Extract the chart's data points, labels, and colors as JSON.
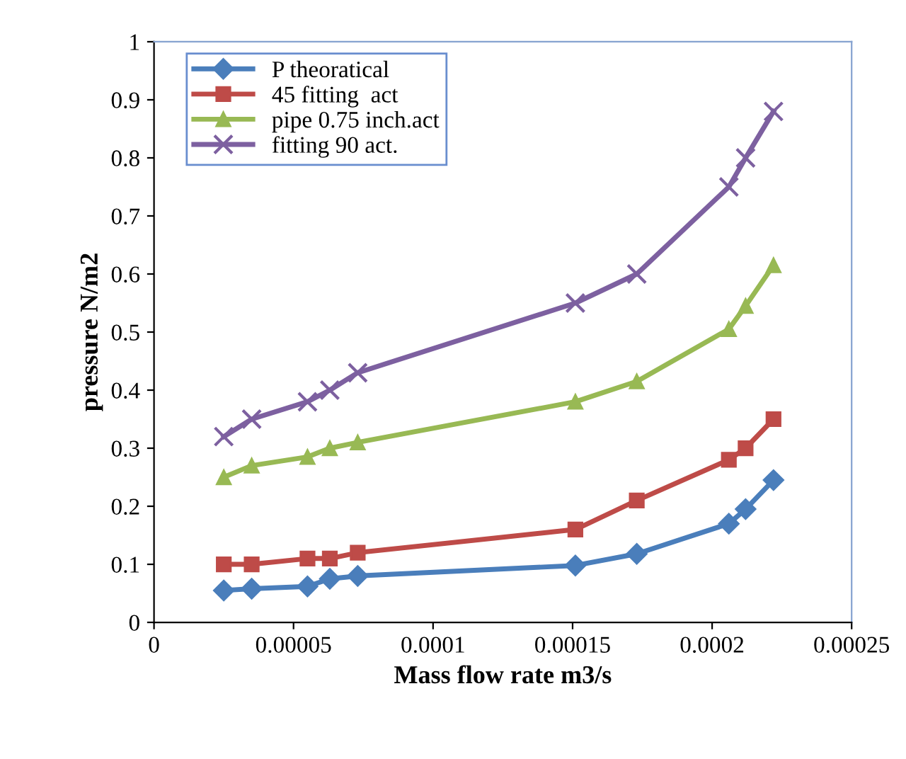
{
  "chart_data": {
    "type": "line",
    "xlabel": "Mass flow rate m3/s",
    "ylabel": "pressure N/m2",
    "x": [
      2.5e-05,
      3.5e-05,
      5.5e-05,
      6.3e-05,
      7.3e-05,
      0.000151,
      0.000173,
      0.000206,
      0.000212,
      0.000222
    ],
    "series": [
      {
        "name": "P theoratical",
        "color": "#4a7ebb",
        "marker": "diamond",
        "values": [
          0.055,
          0.058,
          0.062,
          0.075,
          0.08,
          0.098,
          0.118,
          0.17,
          0.195,
          0.245
        ]
      },
      {
        "name": "45 fitting  act",
        "color": "#be4b48",
        "marker": "square",
        "values": [
          0.1,
          0.1,
          0.11,
          0.11,
          0.12,
          0.16,
          0.21,
          0.28,
          0.3,
          0.35
        ]
      },
      {
        "name": "pipe 0.75 inch.act",
        "color": "#98b954",
        "marker": "triangle",
        "values": [
          0.25,
          0.27,
          0.285,
          0.3,
          0.31,
          0.38,
          0.415,
          0.505,
          0.545,
          0.615
        ]
      },
      {
        "name": "fitting 90 act.",
        "color": "#7d60a0",
        "marker": "cross",
        "values": [
          0.32,
          0.35,
          0.38,
          0.4,
          0.43,
          0.55,
          0.6,
          0.75,
          0.8,
          0.88
        ]
      }
    ],
    "xlim": [
      0,
      0.00025
    ],
    "xticks": [
      0,
      {
        "value": 5e-05,
        "label": "0.00005"
      },
      {
        "value": 0.0001,
        "label": "0.0001"
      },
      {
        "value": 0.00015,
        "label": "0.00015"
      },
      {
        "value": 0.0002,
        "label": "0.0002"
      },
      {
        "value": 0.00025,
        "label": "0.00025"
      }
    ],
    "ylim": [
      0,
      1
    ],
    "yticks": [
      0,
      0.1,
      0.2,
      0.3,
      0.4,
      0.5,
      0.6,
      0.7,
      0.8,
      0.9,
      1
    ],
    "grid": false,
    "legend": "top left",
    "line_style": "solid"
  }
}
